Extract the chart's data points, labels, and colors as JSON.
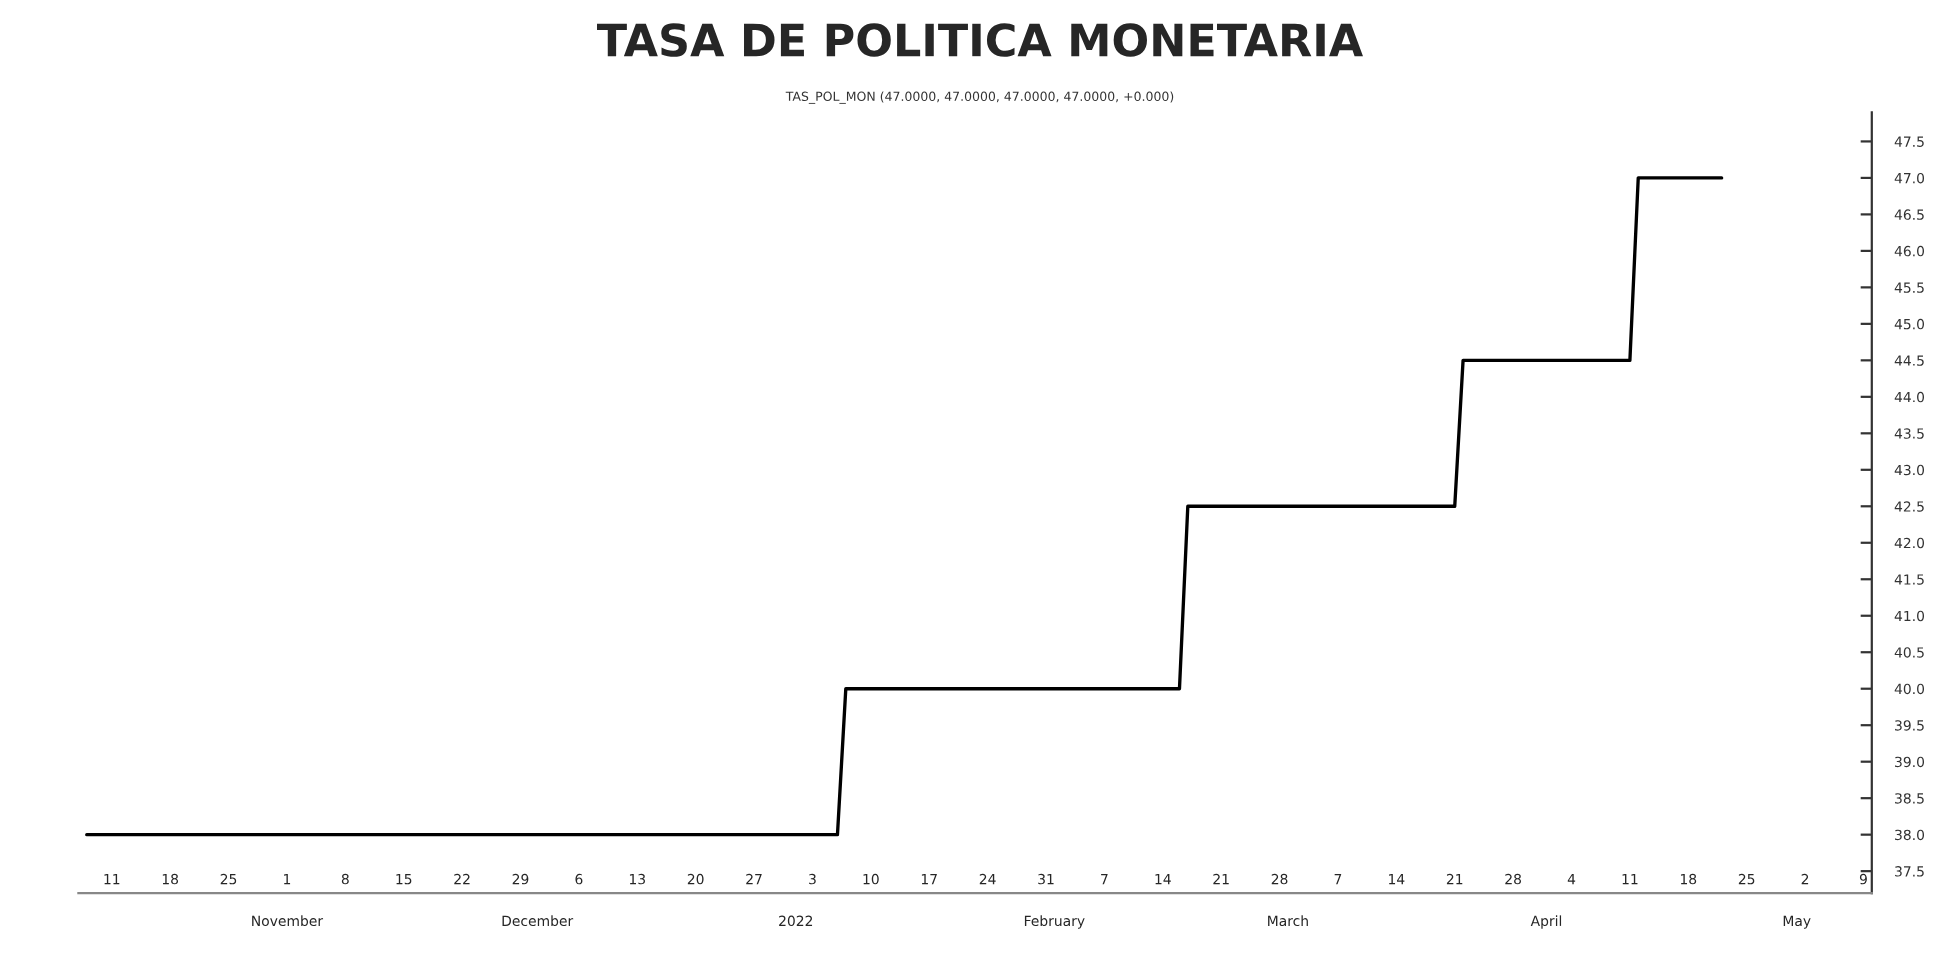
{
  "chart_data": {
    "type": "line",
    "title": "TASA DE POLITICA MONETARIA",
    "subtitle": "TAS_POL_MON (47.0000, 47.0000, 47.0000, 47.0000, +0.000)",
    "x": [
      "2021-10-08",
      "2022-01-06",
      "2022-01-07",
      "2022-02-16",
      "2022-02-17",
      "2022-03-21",
      "2022-03-22",
      "2022-04-11",
      "2022-04-12",
      "2022-04-22"
    ],
    "series": [
      {
        "color": "#000000",
        "values": [
          38.0,
          38.0,
          40.0,
          40.0,
          42.5,
          42.5,
          44.5,
          44.5,
          47.0,
          47.0
        ]
      }
    ],
    "xlim": [
      "2021-10-07",
      "2022-05-10"
    ],
    "xticks": [
      {
        "value": "2021-10-11",
        "label": "11"
      },
      {
        "value": "2021-10-18",
        "label": "18"
      },
      {
        "value": "2021-10-25",
        "label": "25"
      },
      {
        "value": "2021-11-01",
        "label": "1"
      },
      {
        "value": "2021-11-08",
        "label": "8"
      },
      {
        "value": "2021-11-15",
        "label": "15"
      },
      {
        "value": "2021-11-22",
        "label": "22"
      },
      {
        "value": "2021-11-29",
        "label": "29"
      },
      {
        "value": "2021-12-06",
        "label": "6"
      },
      {
        "value": "2021-12-13",
        "label": "13"
      },
      {
        "value": "2021-12-20",
        "label": "20"
      },
      {
        "value": "2021-12-27",
        "label": "27"
      },
      {
        "value": "2022-01-03",
        "label": "3"
      },
      {
        "value": "2022-01-10",
        "label": "10"
      },
      {
        "value": "2022-01-17",
        "label": "17"
      },
      {
        "value": "2022-01-24",
        "label": "24"
      },
      {
        "value": "2022-01-31",
        "label": "31"
      },
      {
        "value": "2022-02-07",
        "label": "7"
      },
      {
        "value": "2022-02-14",
        "label": "14"
      },
      {
        "value": "2022-02-21",
        "label": "21"
      },
      {
        "value": "2022-02-28",
        "label": "28"
      },
      {
        "value": "2022-03-07",
        "label": "7"
      },
      {
        "value": "2022-03-14",
        "label": "14"
      },
      {
        "value": "2022-03-21",
        "label": "21"
      },
      {
        "value": "2022-03-28",
        "label": "28"
      },
      {
        "value": "2022-04-04",
        "label": "4"
      },
      {
        "value": "2022-04-11",
        "label": "11"
      },
      {
        "value": "2022-04-18",
        "label": "18"
      },
      {
        "value": "2022-04-25",
        "label": "25"
      },
      {
        "value": "2022-05-02",
        "label": "2"
      },
      {
        "value": "2022-05-09",
        "label": "9"
      }
    ],
    "x2lim": [
      "2021-10-07",
      "2022-05-10"
    ],
    "x2ticks": [
      {
        "value": "2021-11-01",
        "label": "November"
      },
      {
        "value": "2021-12-01",
        "label": "December"
      },
      {
        "value": "2022-01-01",
        "label": "2022"
      },
      {
        "value": "2022-02-01",
        "label": "February"
      },
      {
        "value": "2022-03-01",
        "label": "March"
      },
      {
        "value": "2022-04-01",
        "label": "April"
      },
      {
        "value": "2022-05-01",
        "label": "May"
      }
    ],
    "ylim": [
      37.2,
      47.9
    ],
    "yticks": [
      {
        "value": 37.5,
        "label": "37.5"
      },
      {
        "value": 38.0,
        "label": "38.0"
      },
      {
        "value": 38.5,
        "label": "38.5"
      },
      {
        "value": 39.0,
        "label": "39.0"
      },
      {
        "value": 39.5,
        "label": "39.5"
      },
      {
        "value": 40.0,
        "label": "40.0"
      },
      {
        "value": 40.5,
        "label": "40.5"
      },
      {
        "value": 41.0,
        "label": "41.0"
      },
      {
        "value": 41.5,
        "label": "41.5"
      },
      {
        "value": 42.0,
        "label": "42.0"
      },
      {
        "value": 42.5,
        "label": "42.5"
      },
      {
        "value": 43.0,
        "label": "43.0"
      },
      {
        "value": 43.5,
        "label": "43.5"
      },
      {
        "value": 44.0,
        "label": "44.0"
      },
      {
        "value": 44.5,
        "label": "44.5"
      },
      {
        "value": 45.0,
        "label": "45.0"
      },
      {
        "value": 45.5,
        "label": "45.5"
      },
      {
        "value": 46.0,
        "label": "46.0"
      },
      {
        "value": 46.5,
        "label": "46.5"
      },
      {
        "value": 47.0,
        "label": "47.0"
      },
      {
        "value": 47.5,
        "label": "47.5"
      }
    ],
    "grid": false,
    "legend": false,
    "marker": "none",
    "line_style": "solid"
  }
}
